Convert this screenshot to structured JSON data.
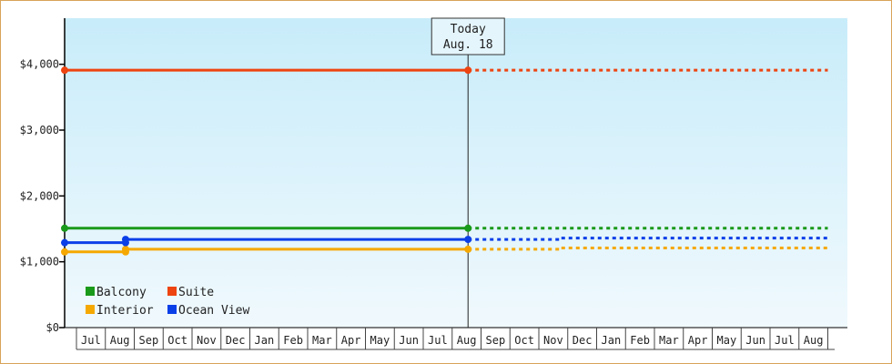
{
  "chart_data": {
    "type": "line",
    "ylim": [
      0,
      4700
    ],
    "y_ticks": [
      {
        "value": 0,
        "label": "$0"
      },
      {
        "value": 1000,
        "label": "$1,000"
      },
      {
        "value": 2000,
        "label": "$2,000"
      },
      {
        "value": 3000,
        "label": "$3,000"
      },
      {
        "value": 4000,
        "label": "$4,000"
      }
    ],
    "x_categories": [
      "Jul",
      "Aug",
      "Sep",
      "Oct",
      "Nov",
      "Dec",
      "Jan",
      "Feb",
      "Mar",
      "Apr",
      "May",
      "Jun",
      "Jul",
      "Aug",
      "Sep",
      "Oct",
      "Nov",
      "Dec",
      "Jan",
      "Feb",
      "Mar",
      "Apr",
      "May",
      "Jun",
      "Jul",
      "Aug"
    ],
    "today": {
      "line1": "Today",
      "line2": "Aug. 18",
      "index": 13.55
    },
    "grid": false,
    "legend_position": "bottom-left",
    "series": [
      {
        "name": "Balcony",
        "color": "#1a9a1a",
        "actual": [
          {
            "x": 0,
            "y": 1510
          },
          {
            "x": 13.55,
            "y": 1510
          }
        ],
        "projected": [
          {
            "x": 13.55,
            "y": 1510
          },
          {
            "x": 26,
            "y": 1510
          }
        ],
        "markers": [
          0,
          13.55
        ]
      },
      {
        "name": "Suite",
        "color": "#ee4411",
        "actual": [
          {
            "x": 0,
            "y": 3910
          },
          {
            "x": 13.55,
            "y": 3910
          }
        ],
        "projected": [
          {
            "x": 13.55,
            "y": 3910
          },
          {
            "x": 26,
            "y": 3910
          }
        ],
        "markers": [
          0,
          13.55
        ]
      },
      {
        "name": "Interior",
        "color": "#f5a800",
        "actual": [
          {
            "x": 0,
            "y": 1150
          },
          {
            "x": 1.7,
            "y": 1150
          },
          {
            "x": 1.7,
            "y": 1190
          },
          {
            "x": 13.55,
            "y": 1190
          }
        ],
        "projected": [
          {
            "x": 13.55,
            "y": 1190
          },
          {
            "x": 16.75,
            "y": 1190
          },
          {
            "x": 16.75,
            "y": 1210
          },
          {
            "x": 26,
            "y": 1210
          }
        ],
        "markers": [
          0,
          1.7,
          13.55
        ]
      },
      {
        "name": "Ocean View",
        "color": "#0a3fe8",
        "actual": [
          {
            "x": 0,
            "y": 1290
          },
          {
            "x": 1.7,
            "y": 1290
          },
          {
            "x": 1.7,
            "y": 1340
          },
          {
            "x": 13.55,
            "y": 1340
          }
        ],
        "projected": [
          {
            "x": 13.55,
            "y": 1340
          },
          {
            "x": 16.75,
            "y": 1340
          },
          {
            "x": 16.75,
            "y": 1360
          },
          {
            "x": 26,
            "y": 1360
          }
        ],
        "markers": [
          0,
          1.7,
          13.55
        ]
      }
    ],
    "legend_order": [
      [
        "Balcony",
        "Suite"
      ],
      [
        "Interior",
        "Ocean View"
      ]
    ],
    "colors": {
      "background_top": "#c8ecfa",
      "background_bottom": "#f0f9fd",
      "border": "#d8a45a",
      "axis": "#000000"
    }
  }
}
